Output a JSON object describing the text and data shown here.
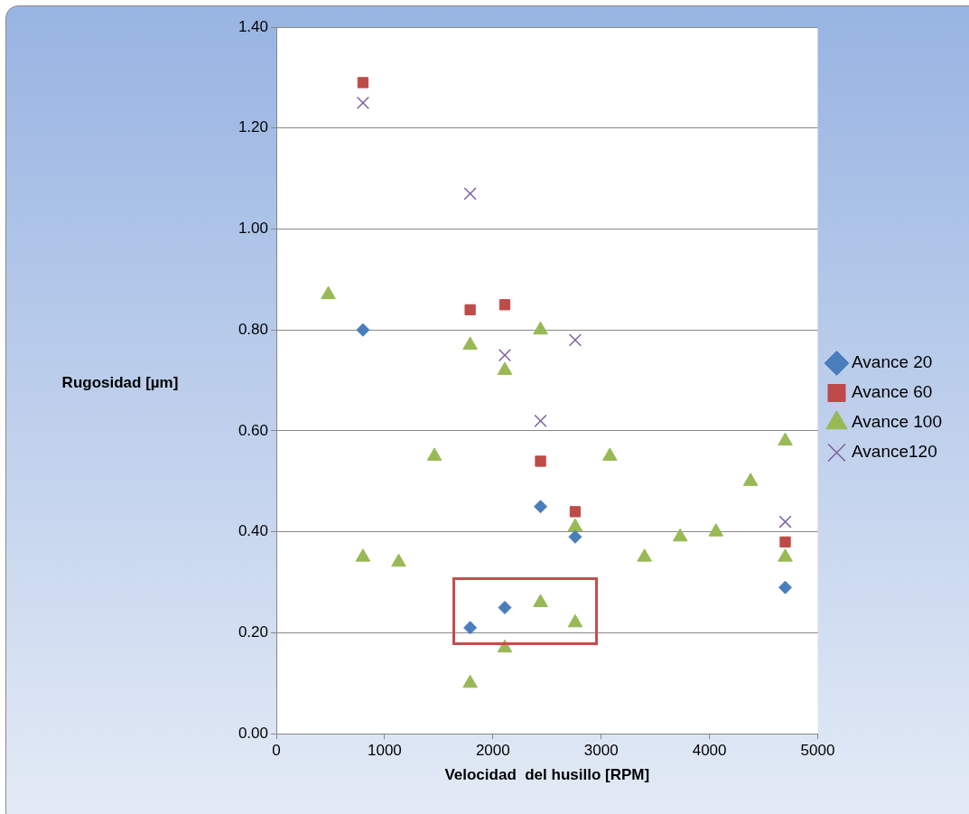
{
  "chart_data": {
    "type": "scatter",
    "xlabel": "Velocidad  del husillo [RPM]",
    "ylabel": "Rugosidad [µm]",
    "xlim": [
      0,
      5000
    ],
    "xticks": [
      0,
      1000,
      2000,
      3000,
      4000,
      5000
    ],
    "ylim": [
      0,
      1.4
    ],
    "yticks": [
      {
        "value": 0,
        "label": "0.00"
      },
      {
        "value": 0.2,
        "label": "0.20"
      },
      {
        "value": 0.4,
        "label": "0.40"
      },
      {
        "value": 0.6,
        "label": "0.60"
      },
      {
        "value": 0.8,
        "label": "0.80"
      },
      {
        "value": 1.0,
        "label": "1.00"
      },
      {
        "value": 1.2,
        "label": "1.20"
      },
      {
        "value": 1.4,
        "label": "1.40"
      }
    ],
    "grid": "y",
    "legend": "right",
    "series": [
      {
        "name": "Avance 20",
        "color": "#4a7ebb",
        "marker": "diamond",
        "x": [
          800,
          1790,
          2110,
          2440,
          2760,
          4700
        ],
        "values": [
          0.8,
          0.21,
          0.25,
          0.45,
          0.39,
          0.29
        ]
      },
      {
        "name": "Avance 60",
        "color": "#be4b48",
        "marker": "square",
        "x": [
          800,
          1790,
          2110,
          2440,
          2760,
          4700
        ],
        "values": [
          1.29,
          0.84,
          0.85,
          0.54,
          0.44,
          0.38
        ]
      },
      {
        "name": "Avance 100",
        "color": "#98b954",
        "marker": "triangle",
        "x": [
          480,
          800,
          1130,
          1460,
          1790,
          1790,
          2110,
          2110,
          2440,
          2440,
          2760,
          2760,
          3080,
          3400,
          3730,
          4060,
          4380,
          4700,
          4700
        ],
        "values": [
          0.87,
          0.35,
          0.34,
          0.55,
          0.77,
          0.1,
          0.72,
          0.17,
          0.8,
          0.26,
          0.41,
          0.22,
          0.55,
          0.35,
          0.39,
          0.4,
          0.5,
          0.58,
          0.35
        ]
      },
      {
        "name": "Avance120",
        "color": "#7d60a0",
        "marker": "cross",
        "x": [
          800,
          1790,
          2110,
          2440,
          2760,
          4700
        ],
        "values": [
          1.25,
          1.07,
          0.75,
          0.62,
          0.78,
          0.42
        ]
      }
    ]
  }
}
